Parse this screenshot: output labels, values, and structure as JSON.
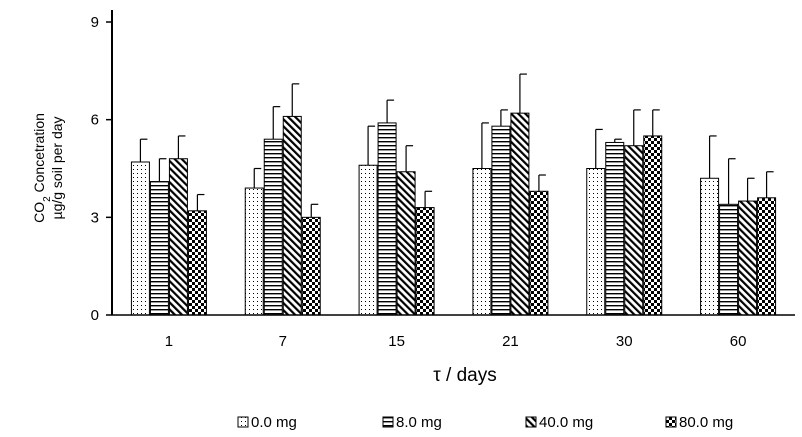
{
  "chart_data": {
    "type": "bar",
    "categories": [
      "1",
      "7",
      "15",
      "21",
      "30",
      "60"
    ],
    "xlabel": "τ / days",
    "ylabel": {
      "line1_main": "CO",
      "line1_sub": "2",
      "line1_rest": " Concetration",
      "line2": "µg/g soil per day"
    },
    "ylim": [
      0,
      9
    ],
    "yticks": [
      "0",
      "3",
      "6",
      "9"
    ],
    "grid": false,
    "legend_position": "bottom",
    "series": [
      {
        "name": "0.0 mg",
        "pattern": "dots",
        "values": [
          4.7,
          3.9,
          4.6,
          4.5,
          4.5,
          4.2
        ],
        "errors": [
          0.7,
          0.6,
          1.2,
          1.4,
          1.2,
          1.3
        ]
      },
      {
        "name": "8.0 mg",
        "pattern": "horizontal-lines",
        "values": [
          4.1,
          5.4,
          5.9,
          5.8,
          5.3,
          3.4
        ],
        "errors": [
          0.7,
          1.0,
          0.7,
          0.5,
          0.1,
          1.4
        ]
      },
      {
        "name": "40.0 mg",
        "pattern": "diagonal-lines",
        "values": [
          4.8,
          6.1,
          4.4,
          6.2,
          5.2,
          3.5
        ],
        "errors": [
          0.7,
          1.0,
          0.8,
          1.2,
          1.1,
          0.7
        ]
      },
      {
        "name": "80.0 mg",
        "pattern": "checker",
        "values": [
          3.2,
          3.0,
          3.3,
          3.8,
          5.5,
          3.6
        ],
        "errors": [
          0.5,
          0.4,
          0.5,
          0.5,
          0.8,
          0.8
        ]
      }
    ]
  }
}
